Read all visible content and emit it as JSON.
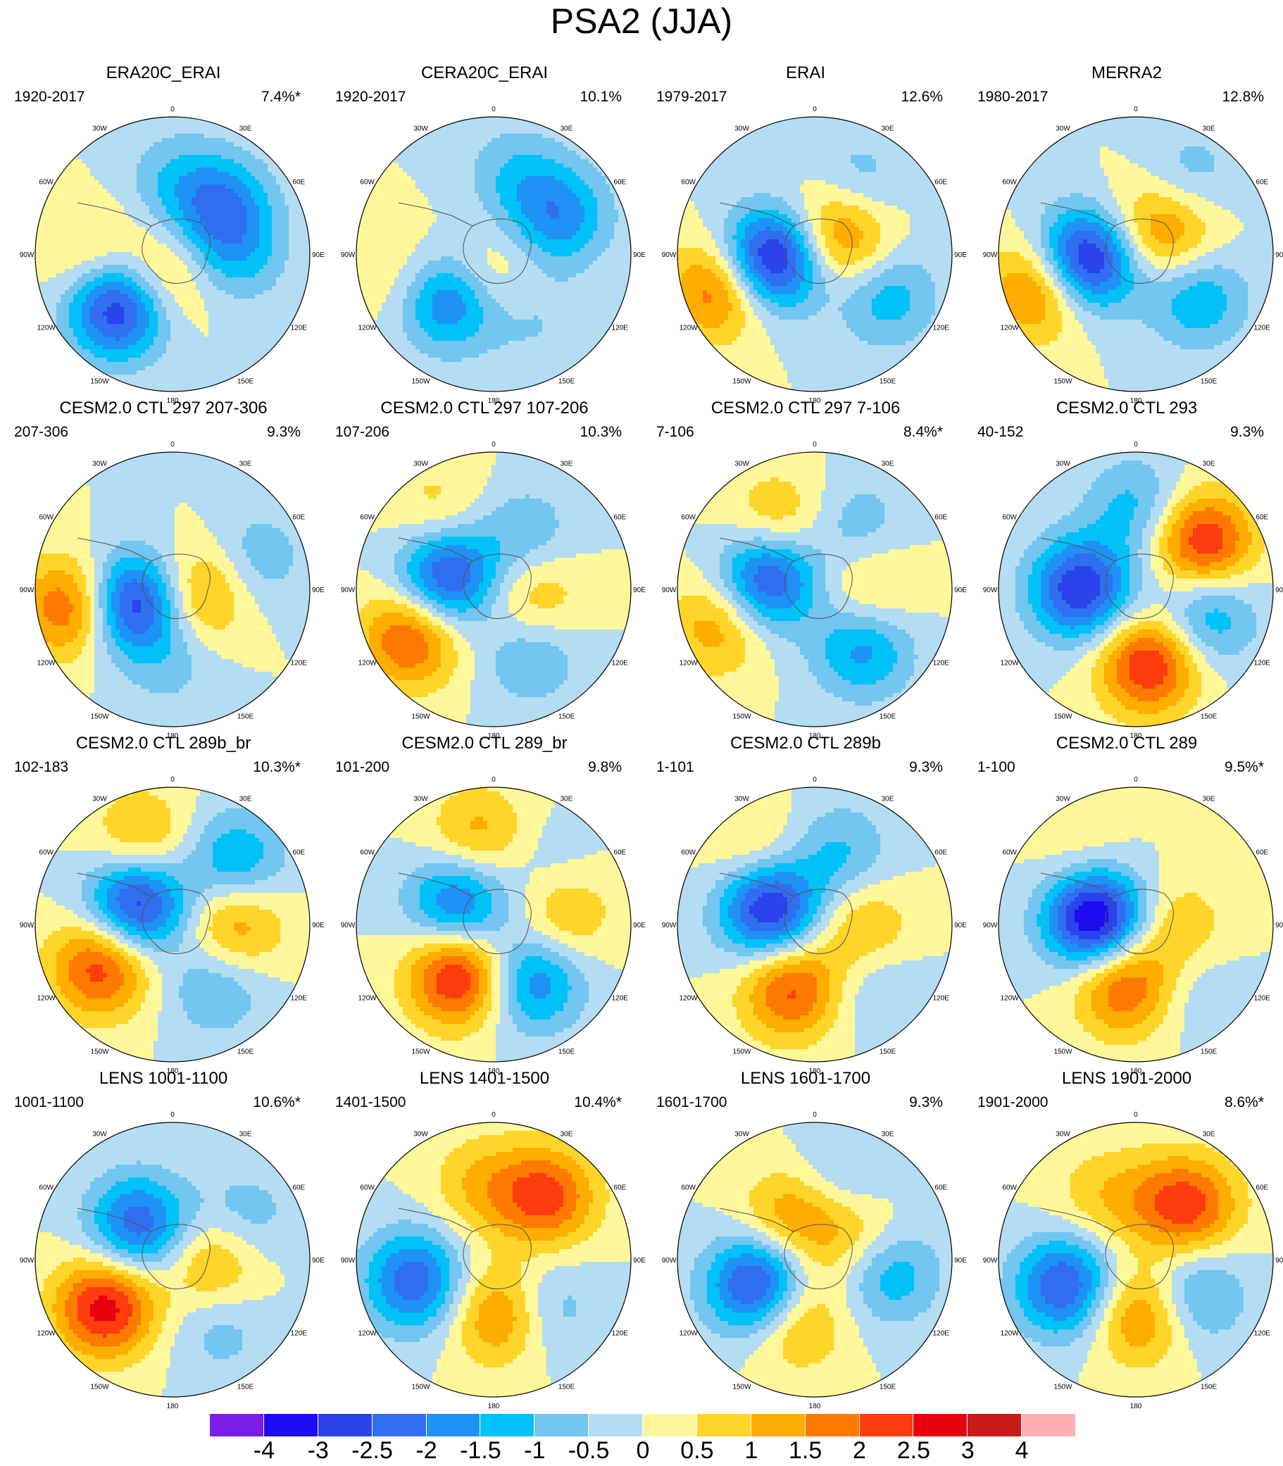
{
  "title": "PSA2 (JJA)",
  "lon_labels": [
    "0",
    "30E",
    "60E",
    "90E",
    "120E",
    "150E",
    "180",
    "150W",
    "120W",
    "90W",
    "60W",
    "30W"
  ],
  "palette": [
    "#7b1de6",
    "#1c0cf2",
    "#2b43ea",
    "#2f6ff0",
    "#1f92f5",
    "#00c2f8",
    "#72c6f0",
    "#b4dcf2",
    "#fff79a",
    "#ffd52a",
    "#ffad00",
    "#ff7a00",
    "#ff3c0d",
    "#e8000d",
    "#cc1a1a",
    "#ffb1b1"
  ],
  "chart_data": {
    "type": "map",
    "projection": "south-polar-stereographic",
    "variable": "PSA2 (JJA)",
    "colorbar": {
      "levels": [
        "-4",
        "-3",
        "-2.5",
        "-2",
        "-1.5",
        "-1",
        "-0.5",
        "0",
        "0.5",
        "1",
        "1.5",
        "2",
        "2.5",
        "3",
        "4"
      ]
    },
    "panels": [
      {
        "title": "ERA20C_ERAI",
        "period": "1920-2017",
        "variance": "7.4%*",
        "centers": [
          [
            225,
            0.55,
            -3.2
          ],
          [
            200,
            0.2,
            1.3
          ],
          [
            45,
            0.5,
            -1.8
          ],
          [
            270,
            0.6,
            0.8
          ],
          [
            0,
            0.55,
            -0.8
          ],
          [
            90,
            0.45,
            -1.2
          ]
        ]
      },
      {
        "title": "CERA20C_ERAI",
        "period": "1920-2017",
        "variance": "10.1%",
        "centers": [
          [
            225,
            0.45,
            -2.6
          ],
          [
            200,
            0.2,
            1.2
          ],
          [
            60,
            0.55,
            -1.8
          ],
          [
            255,
            0.65,
            0.7
          ],
          [
            15,
            0.6,
            -0.9
          ],
          [
            150,
            0.55,
            -0.6
          ]
        ]
      },
      {
        "title": "ERAI",
        "period": "1979-2017",
        "variance": "12.6%",
        "centers": [
          [
            265,
            0.3,
            -3.6
          ],
          [
            250,
            0.75,
            2.0
          ],
          [
            70,
            0.25,
            1.5
          ],
          [
            120,
            0.6,
            -1.4
          ],
          [
            30,
            0.6,
            -0.9
          ],
          [
            10,
            0.25,
            0.8
          ]
        ]
      },
      {
        "title": "MERRA2",
        "period": "1980-2017",
        "variance": "12.8%",
        "centers": [
          [
            265,
            0.35,
            -3.6
          ],
          [
            250,
            0.75,
            2.0
          ],
          [
            60,
            0.3,
            1.4
          ],
          [
            125,
            0.55,
            -1.5
          ],
          [
            35,
            0.7,
            -0.8
          ],
          [
            350,
            0.2,
            0.7
          ]
        ]
      },
      {
        "title": "CESM2.0 CTL 297 207-306",
        "period": "207-306",
        "variance": "9.3%",
        "centers": [
          [
            250,
            0.3,
            -3.2
          ],
          [
            260,
            0.75,
            2.2
          ],
          [
            100,
            0.2,
            1.6
          ],
          [
            70,
            0.65,
            -0.9
          ],
          [
            180,
            0.55,
            -0.6
          ]
        ]
      },
      {
        "title": "CESM2.0 CTL 297 107-206",
        "period": "107-206",
        "variance": "10.3%",
        "centers": [
          [
            285,
            0.35,
            -2.8
          ],
          [
            240,
            0.7,
            2.2
          ],
          [
            100,
            0.3,
            1.2
          ],
          [
            30,
            0.45,
            -1.0
          ],
          [
            150,
            0.55,
            -1.1
          ],
          [
            325,
            0.7,
            0.8
          ]
        ]
      },
      {
        "title": "CESM2.0 CTL 297 7-106",
        "period": "7-106",
        "variance": "8.4%*",
        "centers": [
          [
            285,
            0.35,
            -2.9
          ],
          [
            250,
            0.75,
            1.4
          ],
          [
            330,
            0.55,
            1.3
          ],
          [
            140,
            0.55,
            -1.8
          ],
          [
            35,
            0.55,
            -0.9
          ],
          [
            90,
            0.4,
            1.1
          ]
        ]
      },
      {
        "title": "CESM2.0 CTL 293",
        "period": "40-152",
        "variance": "9.3%",
        "centers": [
          [
            270,
            0.4,
            -3.0
          ],
          [
            170,
            0.55,
            2.6
          ],
          [
            55,
            0.6,
            2.6
          ],
          [
            110,
            0.55,
            -1.6
          ],
          [
            0,
            0.6,
            -1.2
          ]
        ]
      },
      {
        "title": "CESM2.0 CTL 289b_br",
        "period": "102-183",
        "variance": "10.3%*",
        "centers": [
          [
            300,
            0.3,
            -3.1
          ],
          [
            240,
            0.6,
            2.4
          ],
          [
            90,
            0.45,
            1.6
          ],
          [
            45,
            0.65,
            -1.6
          ],
          [
            340,
            0.65,
            1.3
          ],
          [
            145,
            0.55,
            -1.1
          ]
        ]
      },
      {
        "title": "CESM2.0 CTL 289_br",
        "period": "101-200",
        "variance": "9.8%",
        "centers": [
          [
            300,
            0.3,
            -2.3
          ],
          [
            215,
            0.45,
            2.8
          ],
          [
            145,
            0.5,
            -2.0
          ],
          [
            80,
            0.5,
            1.3
          ],
          [
            350,
            0.65,
            1.3
          ],
          [
            45,
            0.55,
            -0.6
          ]
        ]
      },
      {
        "title": "CESM2.0 CTL 289b",
        "period": "1-101",
        "variance": "9.3%",
        "centers": [
          [
            290,
            0.35,
            -3.3
          ],
          [
            200,
            0.5,
            2.2
          ],
          [
            95,
            0.35,
            1.2
          ],
          [
            20,
            0.55,
            -1.1
          ],
          [
            135,
            0.6,
            -0.7
          ],
          [
            320,
            0.65,
            0.9
          ]
        ]
      },
      {
        "title": "CESM2.0 CTL 289",
        "period": "1-100",
        "variance": "9.5%*",
        "centers": [
          [
            280,
            0.3,
            -3.9
          ],
          [
            190,
            0.45,
            2.2
          ],
          [
            95,
            0.3,
            1.0
          ],
          [
            140,
            0.6,
            -0.6
          ],
          [
            320,
            0.6,
            0.6
          ]
        ]
      },
      {
        "title": "LENS 1001-1100",
        "period": "1001-1100",
        "variance": "10.6%*",
        "centers": [
          [
            315,
            0.35,
            -2.4
          ],
          [
            235,
            0.6,
            2.8
          ],
          [
            95,
            0.3,
            1.4
          ],
          [
            60,
            0.6,
            -0.9
          ],
          [
            145,
            0.6,
            -0.8
          ]
        ]
      },
      {
        "title": "LENS 1401-1500",
        "period": "1401-1500",
        "variance": "10.4%*",
        "centers": [
          [
            255,
            0.6,
            -2.4
          ],
          [
            170,
            0.4,
            2.0
          ],
          [
            40,
            0.6,
            2.2
          ],
          [
            135,
            0.5,
            -1.2
          ],
          [
            350,
            0.55,
            1.0
          ]
        ]
      },
      {
        "title": "LENS 1601-1700",
        "period": "1601-1700",
        "variance": "9.3%",
        "centers": [
          [
            245,
            0.45,
            -3.2
          ],
          [
            330,
            0.35,
            1.5
          ],
          [
            200,
            0.45,
            1.6
          ],
          [
            100,
            0.55,
            -1.5
          ],
          [
            20,
            0.6,
            -0.9
          ],
          [
            55,
            0.35,
            1.2
          ]
        ]
      },
      {
        "title": "LENS 1901-2000",
        "period": "1901-2000",
        "variance": "8.6%*",
        "centers": [
          [
            250,
            0.55,
            -2.6
          ],
          [
            175,
            0.4,
            1.8
          ],
          [
            45,
            0.55,
            2.2
          ],
          [
            120,
            0.5,
            -1.4
          ],
          [
            0,
            0.45,
            0.6
          ],
          [
            325,
            0.55,
            0.6
          ]
        ]
      }
    ]
  }
}
